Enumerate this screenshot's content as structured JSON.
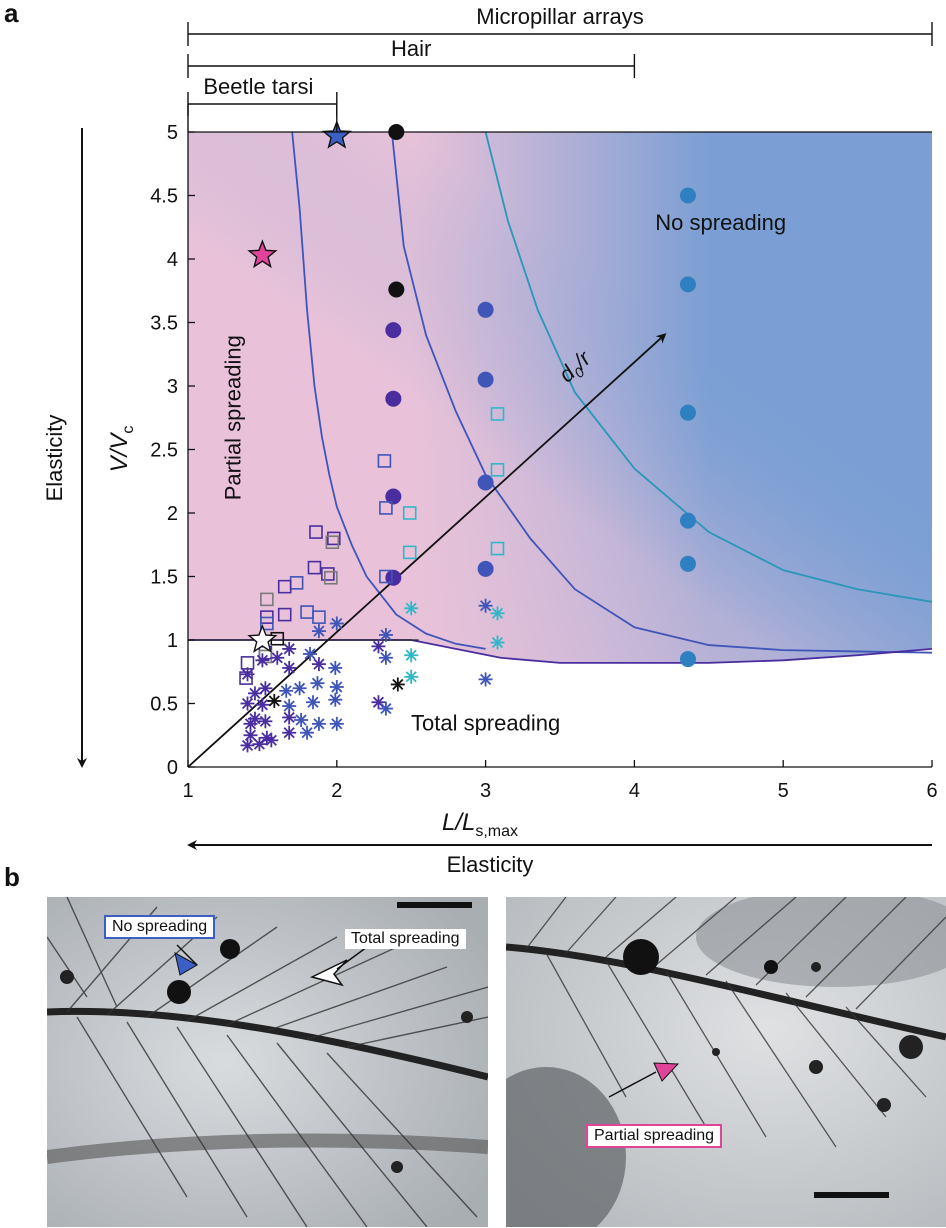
{
  "panels": {
    "a": "a",
    "b": "b"
  },
  "ranges": [
    {
      "label": "Micropillar arrays",
      "from": 1,
      "to": 6
    },
    {
      "label": "Hair",
      "from": 1,
      "to": 4
    },
    {
      "label": "Beetle tarsi",
      "from": 1,
      "to": 2
    }
  ],
  "chart_data": {
    "type": "scatter",
    "xlabel": "L/L",
    "xlabel_sub": "s,max",
    "ylabel": "V/V",
    "ylabel_sub": "c",
    "xlim": [
      1,
      6
    ],
    "ylim": [
      0,
      5
    ],
    "xticks": [
      "1",
      "2",
      "3",
      "4",
      "5",
      "6"
    ],
    "yticks": [
      "0",
      "0.5",
      "1",
      "1.5",
      "2",
      "2.5",
      "3",
      "3.5",
      "4",
      "4.5",
      "5"
    ],
    "grid": false,
    "colors": {
      "pink": "#e9c2d9",
      "blue": "#7b9fd4",
      "c1": "#4a2ea0",
      "c2": "#3f55b8",
      "c3": "#2f80c0",
      "c4": "#31b7c8",
      "black": "#111111",
      "gray": "#7a7a7a",
      "star_blue": "#3b5fc4",
      "star_pink": "#e0449a"
    },
    "region_labels": {
      "partial": "Partial spreading",
      "none": "No spreading",
      "total": "Total spreading"
    },
    "diag_label": "d",
    "diag_sub": "0",
    "diag_tail": "/r",
    "elasticity_label": "Elasticity",
    "curves": [
      {
        "name": "",
        "color": "#3f55b8",
        "x": [
          1.7,
          1.75,
          1.8,
          1.85,
          1.9,
          1.95,
          2.0,
          2.1,
          2.2,
          2.4,
          2.6,
          2.8,
          3.0
        ],
        "y": [
          5.0,
          4.4,
          3.6,
          3.0,
          2.6,
          2.3,
          2.05,
          1.75,
          1.5,
          1.2,
          1.05,
          0.97,
          0.93
        ]
      },
      {
        "name": "",
        "color": "#3f55b8",
        "x": [
          2.37,
          2.45,
          2.6,
          2.8,
          3.0,
          3.3,
          3.6,
          4.0,
          4.5,
          5.0,
          5.5,
          6.0
        ],
        "y": [
          5.0,
          4.1,
          3.4,
          2.8,
          2.3,
          1.8,
          1.4,
          1.1,
          0.96,
          0.92,
          0.91,
          0.9
        ]
      },
      {
        "name": "",
        "color": "#2a96b8",
        "x": [
          3.0,
          3.15,
          3.35,
          3.6,
          4.0,
          4.5,
          5.0,
          5.5,
          6.0
        ],
        "y": [
          5.0,
          4.3,
          3.6,
          2.95,
          2.35,
          1.85,
          1.55,
          1.4,
          1.3
        ]
      },
      {
        "name": "",
        "color": "#4a2ea0",
        "x": [
          1.0,
          1.5,
          2.0,
          2.5,
          2.8,
          3.1,
          3.5,
          4.0,
          4.5,
          5.0,
          5.5,
          6.0
        ],
        "y": [
          1.0,
          1.0,
          1.0,
          1.0,
          0.93,
          0.86,
          0.82,
          0.82,
          0.82,
          0.84,
          0.88,
          0.93
        ]
      }
    ],
    "points": [
      {
        "x": 2.4,
        "y": 5.0,
        "shape": "circle",
        "color": "black"
      },
      {
        "x": 2.4,
        "y": 3.76,
        "shape": "circle",
        "color": "black"
      },
      {
        "x": 2.38,
        "y": 3.44,
        "shape": "circle",
        "color": "c1"
      },
      {
        "x": 2.38,
        "y": 2.9,
        "shape": "circle",
        "color": "c1"
      },
      {
        "x": 2.38,
        "y": 2.13,
        "shape": "circle",
        "color": "c1"
      },
      {
        "x": 2.38,
        "y": 1.49,
        "shape": "circle",
        "color": "c1"
      },
      {
        "x": 3.0,
        "y": 3.6,
        "shape": "circle",
        "color": "c2"
      },
      {
        "x": 3.0,
        "y": 3.05,
        "shape": "circle",
        "color": "c2"
      },
      {
        "x": 3.0,
        "y": 2.24,
        "shape": "circle",
        "color": "c2"
      },
      {
        "x": 3.0,
        "y": 1.56,
        "shape": "circle",
        "color": "c2"
      },
      {
        "x": 4.36,
        "y": 4.5,
        "shape": "circle",
        "color": "c3"
      },
      {
        "x": 4.36,
        "y": 3.8,
        "shape": "circle",
        "color": "c3"
      },
      {
        "x": 4.36,
        "y": 2.79,
        "shape": "circle",
        "color": "c3"
      },
      {
        "x": 4.36,
        "y": 1.94,
        "shape": "circle",
        "color": "c3"
      },
      {
        "x": 4.36,
        "y": 1.6,
        "shape": "circle",
        "color": "c3"
      },
      {
        "x": 4.36,
        "y": 0.85,
        "shape": "circle",
        "color": "c3"
      },
      {
        "x": 1.86,
        "y": 1.85,
        "shape": "square",
        "color": "c1"
      },
      {
        "x": 1.98,
        "y": 1.8,
        "shape": "square",
        "color": "c1"
      },
      {
        "x": 1.97,
        "y": 1.77,
        "shape": "square",
        "color": "gray"
      },
      {
        "x": 1.85,
        "y": 1.57,
        "shape": "square",
        "color": "c1"
      },
      {
        "x": 1.94,
        "y": 1.52,
        "shape": "square",
        "color": "c1"
      },
      {
        "x": 1.96,
        "y": 1.49,
        "shape": "square",
        "color": "gray"
      },
      {
        "x": 1.73,
        "y": 1.45,
        "shape": "square",
        "color": "c2"
      },
      {
        "x": 1.65,
        "y": 1.42,
        "shape": "square",
        "color": "c1"
      },
      {
        "x": 1.53,
        "y": 1.32,
        "shape": "square",
        "color": "gray"
      },
      {
        "x": 1.53,
        "y": 1.18,
        "shape": "square",
        "color": "c1"
      },
      {
        "x": 1.65,
        "y": 1.2,
        "shape": "square",
        "color": "c1"
      },
      {
        "x": 1.8,
        "y": 1.22,
        "shape": "square",
        "color": "c2"
      },
      {
        "x": 1.88,
        "y": 1.18,
        "shape": "square",
        "color": "c2"
      },
      {
        "x": 1.53,
        "y": 1.13,
        "shape": "square",
        "color": "c2"
      },
      {
        "x": 1.6,
        "y": 1.01,
        "shape": "square",
        "color": "black"
      },
      {
        "x": 1.52,
        "y": 0.9,
        "shape": "square",
        "color": "c1"
      },
      {
        "x": 1.52,
        "y": 0.87,
        "shape": "square",
        "color": "gray"
      },
      {
        "x": 1.4,
        "y": 0.82,
        "shape": "square",
        "color": "c1"
      },
      {
        "x": 1.39,
        "y": 0.7,
        "shape": "square",
        "color": "c1"
      },
      {
        "x": 2.32,
        "y": 2.41,
        "shape": "square",
        "color": "c2"
      },
      {
        "x": 2.33,
        "y": 2.04,
        "shape": "square",
        "color": "c2"
      },
      {
        "x": 2.33,
        "y": 1.5,
        "shape": "square",
        "color": "c2"
      },
      {
        "x": 2.49,
        "y": 2.0,
        "shape": "square",
        "color": "c4"
      },
      {
        "x": 2.49,
        "y": 1.69,
        "shape": "square",
        "color": "c4"
      },
      {
        "x": 3.08,
        "y": 2.78,
        "shape": "square",
        "color": "c4"
      },
      {
        "x": 3.08,
        "y": 2.34,
        "shape": "square",
        "color": "c4"
      },
      {
        "x": 3.08,
        "y": 1.72,
        "shape": "square",
        "color": "c4"
      },
      {
        "x": 2.0,
        "y": 1.13,
        "shape": "asterisk",
        "color": "c2"
      },
      {
        "x": 1.88,
        "y": 1.07,
        "shape": "asterisk",
        "color": "c2"
      },
      {
        "x": 1.68,
        "y": 0.93,
        "shape": "asterisk",
        "color": "c1"
      },
      {
        "x": 1.6,
        "y": 0.86,
        "shape": "asterisk",
        "color": "c1"
      },
      {
        "x": 1.5,
        "y": 0.84,
        "shape": "asterisk",
        "color": "c1"
      },
      {
        "x": 1.82,
        "y": 0.89,
        "shape": "asterisk",
        "color": "c2"
      },
      {
        "x": 1.68,
        "y": 0.78,
        "shape": "asterisk",
        "color": "c1"
      },
      {
        "x": 1.88,
        "y": 0.81,
        "shape": "asterisk",
        "color": "c1"
      },
      {
        "x": 1.99,
        "y": 0.78,
        "shape": "asterisk",
        "color": "c2"
      },
      {
        "x": 1.4,
        "y": 0.73,
        "shape": "asterisk",
        "color": "c1"
      },
      {
        "x": 1.52,
        "y": 0.62,
        "shape": "asterisk",
        "color": "c1"
      },
      {
        "x": 1.45,
        "y": 0.58,
        "shape": "asterisk",
        "color": "c1"
      },
      {
        "x": 1.66,
        "y": 0.6,
        "shape": "asterisk",
        "color": "c2"
      },
      {
        "x": 1.75,
        "y": 0.62,
        "shape": "asterisk",
        "color": "c2"
      },
      {
        "x": 1.87,
        "y": 0.66,
        "shape": "asterisk",
        "color": "c2"
      },
      {
        "x": 2.0,
        "y": 0.63,
        "shape": "asterisk",
        "color": "c2"
      },
      {
        "x": 1.4,
        "y": 0.5,
        "shape": "asterisk",
        "color": "c1"
      },
      {
        "x": 1.5,
        "y": 0.49,
        "shape": "asterisk",
        "color": "c1"
      },
      {
        "x": 1.58,
        "y": 0.52,
        "shape": "asterisk",
        "color": "black"
      },
      {
        "x": 1.68,
        "y": 0.48,
        "shape": "asterisk",
        "color": "c2"
      },
      {
        "x": 1.84,
        "y": 0.51,
        "shape": "asterisk",
        "color": "c2"
      },
      {
        "x": 1.99,
        "y": 0.53,
        "shape": "asterisk",
        "color": "c2"
      },
      {
        "x": 1.45,
        "y": 0.38,
        "shape": "asterisk",
        "color": "c1"
      },
      {
        "x": 1.42,
        "y": 0.34,
        "shape": "asterisk",
        "color": "c1"
      },
      {
        "x": 1.52,
        "y": 0.36,
        "shape": "asterisk",
        "color": "c1"
      },
      {
        "x": 1.68,
        "y": 0.39,
        "shape": "asterisk",
        "color": "c1"
      },
      {
        "x": 1.76,
        "y": 0.37,
        "shape": "asterisk",
        "color": "c2"
      },
      {
        "x": 1.88,
        "y": 0.34,
        "shape": "asterisk",
        "color": "c2"
      },
      {
        "x": 2.0,
        "y": 0.34,
        "shape": "asterisk",
        "color": "c2"
      },
      {
        "x": 1.42,
        "y": 0.25,
        "shape": "asterisk",
        "color": "c1"
      },
      {
        "x": 1.53,
        "y": 0.23,
        "shape": "asterisk",
        "color": "c1"
      },
      {
        "x": 1.68,
        "y": 0.27,
        "shape": "asterisk",
        "color": "c1"
      },
      {
        "x": 1.8,
        "y": 0.27,
        "shape": "asterisk",
        "color": "c2"
      },
      {
        "x": 1.4,
        "y": 0.17,
        "shape": "asterisk",
        "color": "c1"
      },
      {
        "x": 1.48,
        "y": 0.18,
        "shape": "asterisk",
        "color": "c1"
      },
      {
        "x": 1.56,
        "y": 0.21,
        "shape": "asterisk",
        "color": "c1"
      },
      {
        "x": 2.33,
        "y": 1.04,
        "shape": "asterisk",
        "color": "c2"
      },
      {
        "x": 2.28,
        "y": 0.95,
        "shape": "asterisk",
        "color": "c1"
      },
      {
        "x": 2.33,
        "y": 0.86,
        "shape": "asterisk",
        "color": "c2"
      },
      {
        "x": 2.41,
        "y": 0.65,
        "shape": "asterisk",
        "color": "black"
      },
      {
        "x": 2.28,
        "y": 0.51,
        "shape": "asterisk",
        "color": "c1"
      },
      {
        "x": 2.33,
        "y": 0.46,
        "shape": "asterisk",
        "color": "c2"
      },
      {
        "x": 2.5,
        "y": 1.25,
        "shape": "asterisk",
        "color": "c4"
      },
      {
        "x": 2.5,
        "y": 0.88,
        "shape": "asterisk",
        "color": "c4"
      },
      {
        "x": 2.5,
        "y": 0.71,
        "shape": "asterisk",
        "color": "c4"
      },
      {
        "x": 3.0,
        "y": 1.27,
        "shape": "asterisk",
        "color": "c2"
      },
      {
        "x": 3.08,
        "y": 1.21,
        "shape": "asterisk",
        "color": "c4"
      },
      {
        "x": 3.08,
        "y": 0.98,
        "shape": "asterisk",
        "color": "c4"
      },
      {
        "x": 3.0,
        "y": 0.69,
        "shape": "asterisk",
        "color": "c2"
      }
    ],
    "stars": [
      {
        "x": 2.0,
        "y": 4.97,
        "color": "star_blue"
      },
      {
        "x": 1.5,
        "y": 4.03,
        "color": "star_pink"
      },
      {
        "x": 1.5,
        "y": 1.0,
        "color": "white"
      }
    ]
  },
  "photos": {
    "left": {
      "no_spreading": "No spreading",
      "total_spreading": "Total spreading"
    },
    "right": {
      "partial_spreading": "Partial spreading"
    }
  }
}
